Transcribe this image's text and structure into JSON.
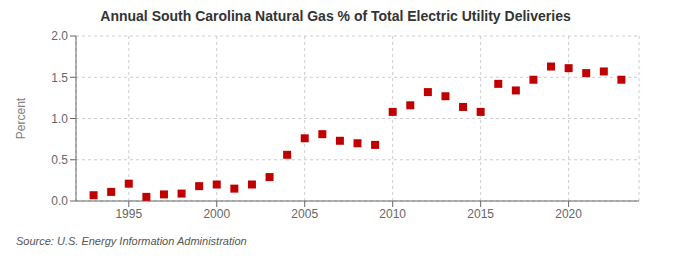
{
  "chart_data": {
    "type": "scatter",
    "title": "Annual South Carolina Natural Gas % of Total Electric Utility Deliveries",
    "y_label": "Percent",
    "annotation": "Source: U.S. Energy Information Administration",
    "x": [
      1993,
      1994,
      1995,
      1996,
      1997,
      1998,
      1999,
      2000,
      2001,
      2002,
      2003,
      2004,
      2005,
      2006,
      2007,
      2008,
      2009,
      2010,
      2011,
      2012,
      2013,
      2014,
      2015,
      2016,
      2017,
      2018,
      2019,
      2020,
      2021,
      2022,
      2023
    ],
    "values": [
      0.07,
      0.11,
      0.21,
      0.05,
      0.08,
      0.09,
      0.18,
      0.2,
      0.15,
      0.2,
      0.29,
      0.56,
      0.76,
      0.81,
      0.73,
      0.7,
      0.68,
      1.08,
      1.16,
      1.32,
      1.27,
      1.14,
      1.08,
      1.42,
      1.34,
      1.47,
      1.63,
      1.61,
      1.55,
      1.57,
      1.47
    ],
    "color": "#c00000",
    "marker": "square",
    "xlim": [
      1992,
      2024
    ],
    "xticks": [
      1995,
      2000,
      2005,
      2010,
      2015,
      2020
    ],
    "ylim": [
      0.0,
      2.0
    ],
    "yticks": [
      {
        "value": 0.0,
        "label": "0.0"
      },
      0.5,
      {
        "value": 1.0,
        "label": "1.0"
      },
      1.5,
      {
        "value": 2.0,
        "label": "2.0"
      }
    ],
    "grid": true
  }
}
